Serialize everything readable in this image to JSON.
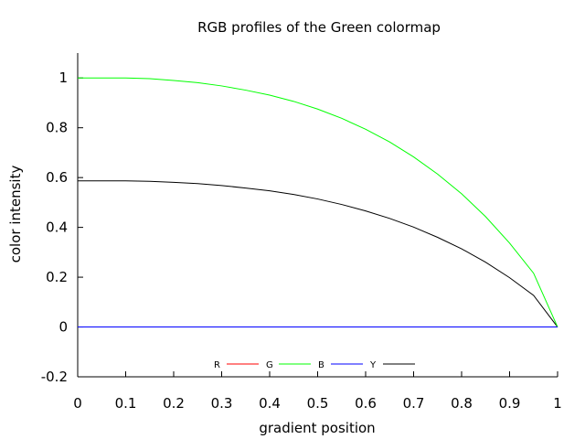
{
  "chart_data": {
    "type": "line",
    "title": "RGB profiles of the Green colormap",
    "xlabel": "gradient position",
    "ylabel": "color intensity",
    "xlim": [
      0,
      1
    ],
    "ylim": [
      -0.2,
      1.1
    ],
    "xticks": [
      0,
      0.1,
      0.2,
      0.3,
      0.4,
      0.5,
      0.6,
      0.7,
      0.8,
      0.9,
      1
    ],
    "xtick_labels": [
      "0",
      "0.1",
      "0.2",
      "0.3",
      "0.4",
      "0.5",
      "0.6",
      "0.7",
      "0.8",
      "0.9",
      "1"
    ],
    "yticks": [
      -0.2,
      0,
      0.2,
      0.4,
      0.6,
      0.8,
      1
    ],
    "ytick_labels": [
      "-0.2",
      "0",
      "0.2",
      "0.4",
      "0.6",
      "0.8",
      "1"
    ],
    "grid": false,
    "legend_position": "bottom-center",
    "x": [
      0,
      0.05,
      0.1,
      0.15,
      0.2,
      0.25,
      0.3,
      0.35,
      0.4,
      0.45,
      0.5,
      0.55,
      0.6,
      0.65,
      0.7,
      0.75,
      0.8,
      0.85,
      0.9,
      0.95,
      1
    ],
    "series": [
      {
        "name": "R",
        "color": "#ff0000",
        "values": [
          0,
          0,
          0,
          0,
          0,
          0,
          0,
          0,
          0,
          0,
          0,
          0,
          0,
          0,
          0,
          0,
          0,
          0,
          0,
          0,
          0
        ]
      },
      {
        "name": "G",
        "color": "#00ff00",
        "values": [
          1,
          1,
          1,
          0.997,
          0.99,
          0.981,
          0.968,
          0.951,
          0.931,
          0.906,
          0.875,
          0.838,
          0.794,
          0.743,
          0.683,
          0.614,
          0.535,
          0.443,
          0.337,
          0.216,
          0
        ]
      },
      {
        "name": "B",
        "color": "#0000ff",
        "values": [
          0,
          0,
          0,
          0,
          0,
          0,
          0,
          0,
          0,
          0,
          0,
          0,
          0,
          0,
          0,
          0,
          0,
          0,
          0,
          0,
          0
        ]
      },
      {
        "name": "Y",
        "color": "#000000",
        "values": [
          0.587,
          0.587,
          0.587,
          0.585,
          0.581,
          0.576,
          0.568,
          0.558,
          0.547,
          0.532,
          0.514,
          0.492,
          0.466,
          0.436,
          0.401,
          0.36,
          0.314,
          0.26,
          0.198,
          0.127,
          0
        ]
      }
    ]
  }
}
